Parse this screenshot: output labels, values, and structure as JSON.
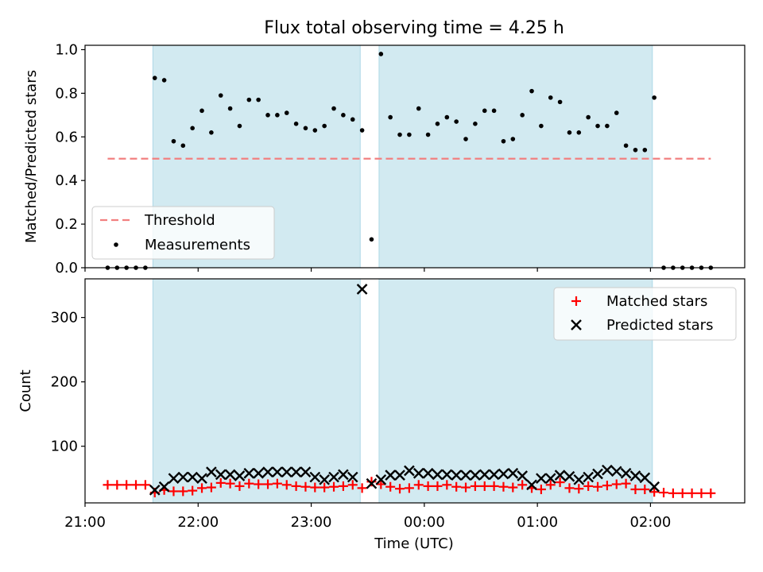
{
  "colors": {
    "shade": "#add8e6",
    "threshold": "#f28080",
    "matched": "#ff0000",
    "predicted": "#000000",
    "measurements": "#000000"
  },
  "chart_data": [
    {
      "type": "scatter",
      "title": "Flux total observing time = 4.25 h",
      "xlabel": "",
      "ylabel": "Matched/Predicted stars",
      "xlim": [
        "21:00",
        "02:50"
      ],
      "ylim": [
        0,
        1.02
      ],
      "yticks": [
        "0.0",
        "0.2",
        "0.4",
        "0.6",
        "0.8",
        "1.0"
      ],
      "shaded_intervals": [
        [
          "21:36",
          "23:26"
        ],
        [
          "23:36",
          "02:01"
        ]
      ],
      "grid": false,
      "legend_position": "lower-left",
      "series": [
        {
          "name": "Threshold",
          "kind": "dashed-line",
          "x": [
            "21:12",
            "02:32"
          ],
          "y": [
            0.5,
            0.5
          ]
        },
        {
          "name": "Measurements",
          "kind": "points",
          "x": [
            "21:12",
            "21:17",
            "21:22",
            "21:27",
            "21:32",
            "21:37",
            "21:42",
            "21:47",
            "21:52",
            "21:57",
            "22:02",
            "22:07",
            "22:12",
            "22:17",
            "22:22",
            "22:27",
            "22:32",
            "22:37",
            "22:42",
            "22:47",
            "22:52",
            "22:57",
            "23:02",
            "23:07",
            "23:12",
            "23:17",
            "23:22",
            "23:27",
            "23:32",
            "23:37",
            "23:42",
            "23:47",
            "23:52",
            "23:57",
            "00:02",
            "00:07",
            "00:12",
            "00:17",
            "00:22",
            "00:27",
            "00:32",
            "00:37",
            "00:42",
            "00:47",
            "00:52",
            "00:57",
            "01:02",
            "01:07",
            "01:12",
            "01:17",
            "01:22",
            "01:27",
            "01:32",
            "01:37",
            "01:42",
            "01:47",
            "01:52",
            "01:57",
            "02:02",
            "02:07",
            "02:12",
            "02:17",
            "02:22",
            "02:27",
            "02:32"
          ],
          "y": [
            0,
            0,
            0,
            0,
            0,
            0.87,
            0.86,
            0.58,
            0.56,
            0.64,
            0.72,
            0.62,
            0.79,
            0.73,
            0.65,
            0.77,
            0.77,
            0.7,
            0.7,
            0.71,
            0.66,
            0.64,
            0.63,
            0.65,
            0.73,
            0.7,
            0.68,
            0.63,
            0.13,
            0.98,
            0.69,
            0.61,
            0.61,
            0.73,
            0.61,
            0.66,
            0.69,
            0.67,
            0.59,
            0.66,
            0.72,
            0.72,
            0.58,
            0.59,
            0.7,
            0.81,
            0.65,
            0.78,
            0.76,
            0.62,
            0.62,
            0.69,
            0.65,
            0.65,
            0.71,
            0.56,
            0.54,
            0.54,
            0.78,
            0,
            0,
            0,
            0,
            0,
            0
          ]
        }
      ]
    },
    {
      "type": "scatter",
      "title": "",
      "xlabel": "Time (UTC)",
      "ylabel": "Count",
      "xlim": [
        "21:00",
        "02:50"
      ],
      "ylim": [
        12,
        360
      ],
      "xticks": [
        "21:00",
        "22:00",
        "23:00",
        "00:00",
        "01:00",
        "02:00"
      ],
      "yticks": [
        "100",
        "200",
        "300"
      ],
      "shaded_intervals": [
        [
          "21:36",
          "23:26"
        ],
        [
          "23:36",
          "02:01"
        ]
      ],
      "grid": false,
      "legend_position": "upper-right",
      "series": [
        {
          "name": "Matched stars",
          "marker": "+",
          "x": [
            "21:12",
            "21:17",
            "21:22",
            "21:27",
            "21:32",
            "21:37",
            "21:42",
            "21:47",
            "21:52",
            "21:57",
            "22:02",
            "22:07",
            "22:12",
            "22:17",
            "22:22",
            "22:27",
            "22:32",
            "22:37",
            "22:42",
            "22:47",
            "22:52",
            "22:57",
            "23:02",
            "23:07",
            "23:12",
            "23:17",
            "23:22",
            "23:27",
            "23:32",
            "23:37",
            "23:42",
            "23:47",
            "23:52",
            "23:57",
            "00:02",
            "00:07",
            "00:12",
            "00:17",
            "00:22",
            "00:27",
            "00:32",
            "00:37",
            "00:42",
            "00:47",
            "00:52",
            "00:57",
            "01:02",
            "01:07",
            "01:12",
            "01:17",
            "01:22",
            "01:27",
            "01:32",
            "01:37",
            "01:42",
            "01:47",
            "01:52",
            "01:57",
            "02:02",
            "02:07",
            "02:12",
            "02:17",
            "02:22",
            "02:27",
            "02:32"
          ],
          "y": [
            40,
            40,
            40,
            40,
            40,
            28,
            32,
            30,
            30,
            31,
            35,
            36,
            43,
            42,
            38,
            42,
            41,
            41,
            42,
            40,
            38,
            37,
            36,
            36,
            37,
            38,
            40,
            35,
            45,
            41,
            37,
            34,
            35,
            40,
            38,
            38,
            40,
            37,
            36,
            38,
            38,
            38,
            37,
            36,
            40,
            35,
            33,
            40,
            44,
            35,
            34,
            38,
            37,
            39,
            41,
            42,
            33,
            33,
            29,
            28,
            27,
            27,
            27,
            27,
            27
          ]
        },
        {
          "name": "Predicted stars",
          "marker": "x",
          "x": [
            "21:37",
            "21:42",
            "21:47",
            "21:52",
            "21:57",
            "22:02",
            "22:07",
            "22:12",
            "22:17",
            "22:22",
            "22:27",
            "22:32",
            "22:37",
            "22:42",
            "22:47",
            "22:52",
            "22:57",
            "23:02",
            "23:07",
            "23:12",
            "23:17",
            "23:22",
            "23:27",
            "23:32",
            "23:37",
            "23:42",
            "23:47",
            "23:52",
            "23:57",
            "00:02",
            "00:07",
            "00:12",
            "00:17",
            "00:22",
            "00:27",
            "00:32",
            "00:37",
            "00:42",
            "00:47",
            "00:52",
            "00:57",
            "01:02",
            "01:07",
            "01:12",
            "01:17",
            "01:22",
            "01:27",
            "01:32",
            "01:37",
            "01:42",
            "01:47",
            "01:52",
            "01:57",
            "02:02"
          ],
          "y": [
            32,
            37,
            50,
            52,
            52,
            50,
            60,
            56,
            56,
            54,
            58,
            58,
            60,
            60,
            60,
            60,
            60,
            52,
            48,
            52,
            56,
            52,
            344,
            42,
            48,
            55,
            55,
            62,
            58,
            58,
            56,
            56,
            55,
            55,
            55,
            56,
            56,
            57,
            58,
            54,
            40,
            50,
            50,
            55,
            53,
            48,
            52,
            57,
            63,
            61,
            58,
            54,
            51,
            37
          ]
        }
      ]
    }
  ]
}
